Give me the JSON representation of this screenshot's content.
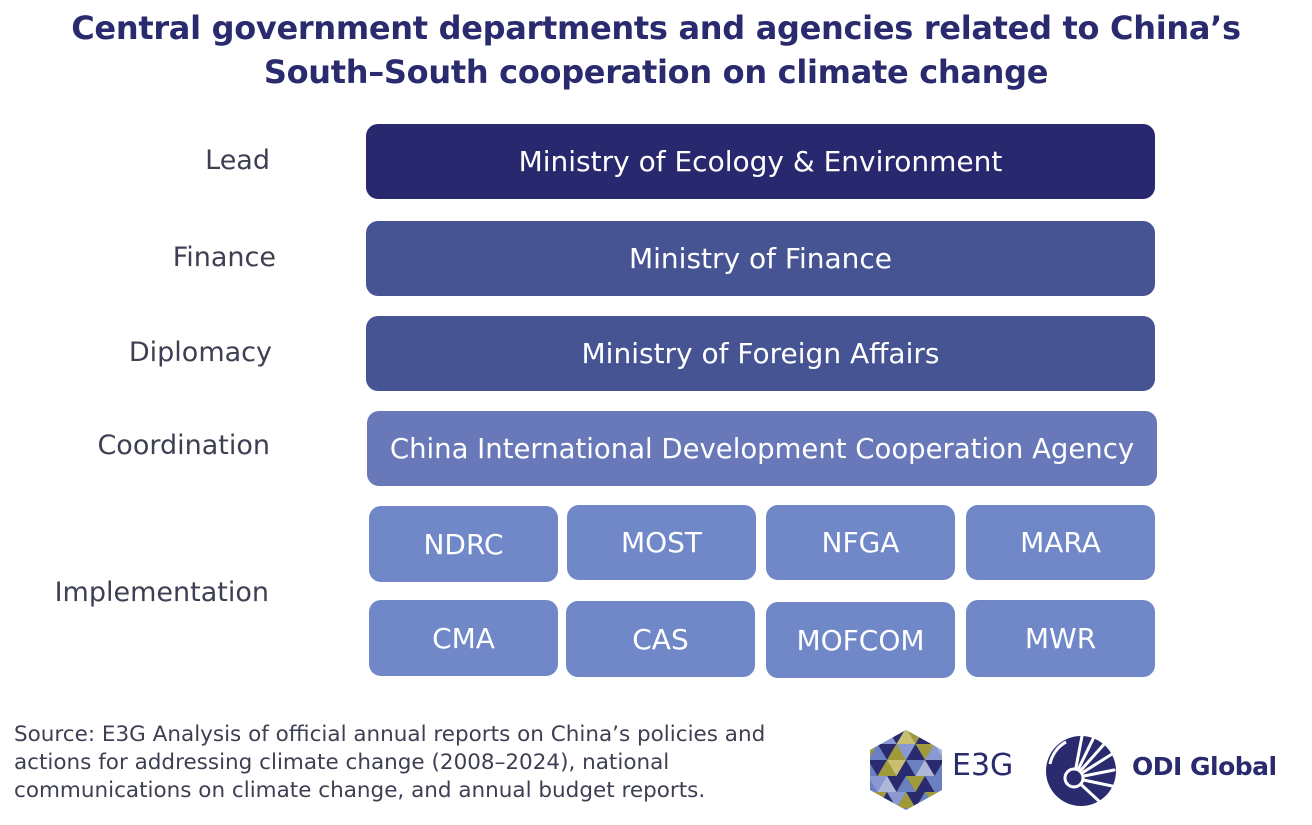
{
  "title": {
    "line1": "Central government departments and agencies related to China’s",
    "line2": "South–South cooperation on climate change"
  },
  "rows": {
    "lead": {
      "label": "Lead",
      "boxes": [
        "Ministry of Ecology & Environment"
      ]
    },
    "finance": {
      "label": "Finance",
      "boxes": [
        "Ministry of Finance"
      ]
    },
    "diplomacy": {
      "label": "Diplomacy",
      "boxes": [
        "Ministry of Foreign Affairs"
      ]
    },
    "coordination": {
      "label": "Coordination",
      "boxes": [
        "China International Development Cooperation Agency"
      ]
    },
    "implementation": {
      "label": "Implementation",
      "boxes": [
        "NDRC",
        "MOST",
        "NFGA",
        "MARA",
        "CMA",
        "CAS",
        "MOFCOM",
        "MWR"
      ]
    }
  },
  "source": {
    "line1": "Source: E3G Analysis of official annual reports on China’s policies and",
    "line2": "actions for addressing climate change (2008–2024), national",
    "line3": "communications on climate change, and annual budget reports."
  },
  "logos": {
    "e3g": {
      "icon": "e3g-hexagon-logo-icon",
      "text": "E3G"
    },
    "odi": {
      "icon": "odi-sunburst-logo-icon",
      "text": "ODI Global"
    }
  },
  "colors": {
    "title": "#2a2a6e",
    "lead": "#28286e",
    "finance_diplomacy": "#465494",
    "coordination": "#6878b8",
    "implementation": "#7088c8"
  }
}
